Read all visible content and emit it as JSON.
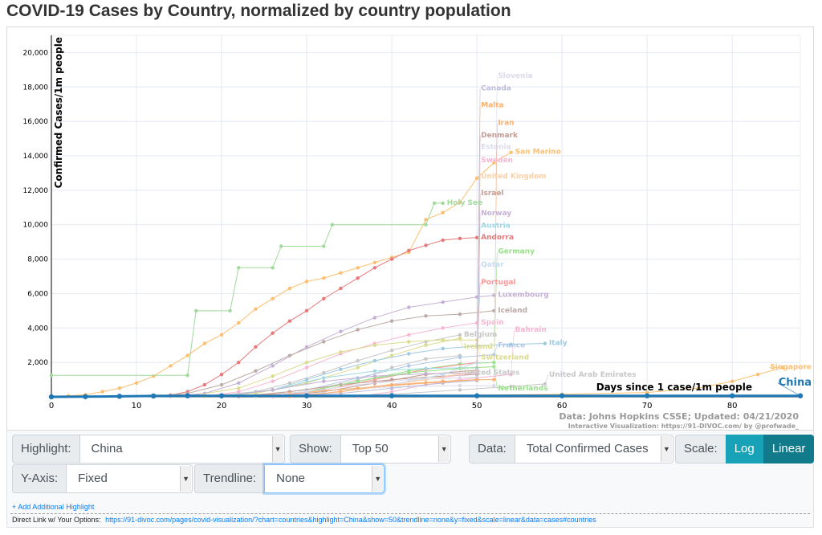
{
  "page": {
    "title": "COVID-19 Cases by Country, normalized by country population"
  },
  "controls": {
    "highlight": {
      "label": "Highlight:",
      "value": "China"
    },
    "show": {
      "label": "Show:",
      "value": "Top 50"
    },
    "data": {
      "label": "Data:",
      "value": "Total Confirmed Cases"
    },
    "scale": {
      "label": "Scale:",
      "options": [
        "Log",
        "Linear"
      ],
      "selected": "Linear"
    },
    "yaxis": {
      "label": "Y-Axis:",
      "value": "Fixed"
    },
    "trendline": {
      "label": "Trendline:",
      "value": "None"
    },
    "add_highlight": "+ Add Additional Highlight",
    "direct_link_label": "Direct Link w/ Your Options:",
    "direct_link_url": "https://91-divoc.com/pages/covid-visualization/?chart=countries&highlight=China&show=50&trendline=none&y=fixed&scale=linear&data=cases#countries"
  },
  "chart_data": {
    "type": "line",
    "title": "COVID-19 Cases by Country, normalized by country population",
    "xlabel": "Days since 1 case/1m people",
    "ylabel": "Confirmed Cases/1m people",
    "xlim": [
      0,
      88
    ],
    "ylim": [
      0,
      21000
    ],
    "x_ticks": [
      0,
      10,
      20,
      30,
      40,
      50,
      60,
      70,
      80
    ],
    "y_ticks": [
      2000,
      4000,
      6000,
      8000,
      10000,
      12000,
      14000,
      16000,
      18000,
      20000
    ],
    "y_tick_labels": [
      "2,000",
      "4,000",
      "6,000",
      "8,000",
      "10,000",
      "12,000",
      "14,000",
      "16,000",
      "18,000",
      "20,000"
    ],
    "grid": true,
    "source_note": "Data: Johns Hopkins CSSE; Updated: 04/21/2020",
    "credit_note": "Interactive Visualization: https://91-DIVOC.com/ by @profwade_",
    "highlighted": "China",
    "series": [
      {
        "name": "San Marino",
        "color": "#fdbf6f",
        "points": [
          [
            0,
            30
          ],
          [
            2,
            60
          ],
          [
            4,
            120
          ],
          [
            6,
            300
          ],
          [
            8,
            500
          ],
          [
            10,
            800
          ],
          [
            12,
            1200
          ],
          [
            14,
            1800
          ],
          [
            16,
            2400
          ],
          [
            18,
            3100
          ],
          [
            20,
            3600
          ],
          [
            22,
            4300
          ],
          [
            24,
            5100
          ],
          [
            26,
            5700
          ],
          [
            28,
            6300
          ],
          [
            30,
            6700
          ],
          [
            32,
            6900
          ],
          [
            34,
            7200
          ],
          [
            36,
            7500
          ],
          [
            38,
            7800
          ],
          [
            40,
            8100
          ],
          [
            42,
            8400
          ],
          [
            44,
            10300
          ],
          [
            46,
            10700
          ],
          [
            48,
            11300
          ],
          [
            50,
            12700
          ],
          [
            52,
            13600
          ],
          [
            54,
            14200
          ]
        ]
      },
      {
        "name": "Holy See",
        "color": "#a1d99b",
        "points": [
          [
            0,
            1250
          ],
          [
            16,
            1250
          ],
          [
            17,
            5000
          ],
          [
            21,
            5000
          ],
          [
            22,
            7500
          ],
          [
            26,
            7500
          ],
          [
            27,
            8750
          ],
          [
            32,
            8750
          ],
          [
            33,
            10000
          ],
          [
            44,
            10000
          ],
          [
            45,
            11250
          ],
          [
            46,
            11250
          ]
        ]
      },
      {
        "name": "Andorra",
        "color": "#e6787a",
        "points": [
          [
            12,
            30
          ],
          [
            14,
            100
          ],
          [
            16,
            300
          ],
          [
            18,
            700
          ],
          [
            20,
            1300
          ],
          [
            22,
            2000
          ],
          [
            24,
            2900
          ],
          [
            26,
            3700
          ],
          [
            28,
            4400
          ],
          [
            30,
            5000
          ],
          [
            32,
            5700
          ],
          [
            34,
            6300
          ],
          [
            36,
            6900
          ],
          [
            38,
            7500
          ],
          [
            40,
            8000
          ],
          [
            42,
            8500
          ],
          [
            44,
            8800
          ],
          [
            46,
            9100
          ],
          [
            48,
            9200
          ],
          [
            50,
            9250
          ]
        ]
      },
      {
        "name": "Luxembourg",
        "color": "#c5b0d5",
        "points": [
          [
            14,
            30
          ],
          [
            18,
            200
          ],
          [
            22,
            800
          ],
          [
            26,
            1800
          ],
          [
            30,
            2900
          ],
          [
            34,
            3800
          ],
          [
            38,
            4600
          ],
          [
            42,
            5200
          ],
          [
            46,
            5500
          ],
          [
            50,
            5800
          ],
          [
            52,
            5900
          ]
        ]
      },
      {
        "name": "Iceland",
        "color": "#bcaaa4",
        "points": [
          [
            12,
            30
          ],
          [
            16,
            200
          ],
          [
            20,
            700
          ],
          [
            24,
            1500
          ],
          [
            28,
            2400
          ],
          [
            32,
            3200
          ],
          [
            36,
            3900
          ],
          [
            40,
            4400
          ],
          [
            44,
            4700
          ],
          [
            48,
            4800
          ],
          [
            52,
            5000
          ]
        ]
      },
      {
        "name": "Spain",
        "color": "#f7b6d2",
        "points": [
          [
            18,
            30
          ],
          [
            22,
            300
          ],
          [
            26,
            900
          ],
          [
            30,
            1700
          ],
          [
            34,
            2500
          ],
          [
            38,
            3100
          ],
          [
            42,
            3600
          ],
          [
            46,
            4000
          ],
          [
            50,
            4300
          ]
        ]
      },
      {
        "name": "Belgium",
        "color": "#c7c7c7",
        "points": [
          [
            18,
            30
          ],
          [
            24,
            300
          ],
          [
            28,
            800
          ],
          [
            32,
            1400
          ],
          [
            36,
            2100
          ],
          [
            40,
            2700
          ],
          [
            44,
            3200
          ],
          [
            48,
            3600
          ]
        ]
      },
      {
        "name": "Ireland",
        "color": "#dbdb8d",
        "points": [
          [
            18,
            20
          ],
          [
            24,
            200
          ],
          [
            30,
            800
          ],
          [
            36,
            1700
          ],
          [
            40,
            2400
          ],
          [
            44,
            3000
          ],
          [
            48,
            3400
          ]
        ]
      },
      {
        "name": "Switzerland",
        "color": "#dbdb8d",
        "points": [
          [
            16,
            30
          ],
          [
            22,
            500
          ],
          [
            26,
            1200
          ],
          [
            30,
            2000
          ],
          [
            34,
            2600
          ],
          [
            38,
            3000
          ],
          [
            42,
            3200
          ],
          [
            46,
            3300
          ],
          [
            50,
            3300
          ]
        ]
      },
      {
        "name": "Italy",
        "color": "#9ecae1",
        "points": [
          [
            20,
            30
          ],
          [
            26,
            400
          ],
          [
            30,
            1000
          ],
          [
            34,
            1600
          ],
          [
            38,
            2100
          ],
          [
            42,
            2500
          ],
          [
            46,
            2800
          ],
          [
            50,
            2950
          ],
          [
            54,
            3050
          ],
          [
            58,
            3100
          ]
        ]
      },
      {
        "name": "United States",
        "color": "#c7c7c7",
        "points": [
          [
            22,
            20
          ],
          [
            30,
            300
          ],
          [
            36,
            1000
          ],
          [
            40,
            1700
          ],
          [
            44,
            2200
          ],
          [
            48,
            2400
          ]
        ]
      },
      {
        "name": "France",
        "color": "#aec7e8",
        "points": [
          [
            22,
            20
          ],
          [
            30,
            400
          ],
          [
            36,
            1100
          ],
          [
            42,
            1800
          ],
          [
            48,
            2300
          ],
          [
            52,
            2450
          ]
        ]
      },
      {
        "name": "Netherlands",
        "color": "#98df8a",
        "points": [
          [
            24,
            20
          ],
          [
            30,
            300
          ],
          [
            36,
            900
          ],
          [
            42,
            1500
          ],
          [
            48,
            1900
          ],
          [
            52,
            2000
          ]
        ]
      },
      {
        "name": "Portugal",
        "color": "#ff9896",
        "points": [
          [
            26,
            20
          ],
          [
            32,
            400
          ],
          [
            38,
            1000
          ],
          [
            44,
            1600
          ],
          [
            50,
            2000
          ]
        ]
      },
      {
        "name": "Israel",
        "color": "#c49c94",
        "points": [
          [
            26,
            20
          ],
          [
            32,
            300
          ],
          [
            38,
            800
          ],
          [
            44,
            1300
          ],
          [
            50,
            1550
          ]
        ]
      },
      {
        "name": "Austria",
        "color": "#9edae5",
        "points": [
          [
            20,
            20
          ],
          [
            26,
            400
          ],
          [
            32,
            1100
          ],
          [
            38,
            1500
          ],
          [
            44,
            1650
          ],
          [
            50,
            1700
          ]
        ]
      },
      {
        "name": "Norway",
        "color": "#c5b0d5",
        "points": [
          [
            20,
            20
          ],
          [
            26,
            400
          ],
          [
            32,
            900
          ],
          [
            38,
            1200
          ],
          [
            44,
            1350
          ],
          [
            50,
            1400
          ]
        ]
      },
      {
        "name": "Denmark",
        "color": "#c49c94",
        "points": [
          [
            22,
            20
          ],
          [
            28,
            300
          ],
          [
            34,
            700
          ],
          [
            40,
            1000
          ],
          [
            46,
            1200
          ],
          [
            50,
            1300
          ]
        ]
      },
      {
        "name": "Germany",
        "color": "#98df8a",
        "points": [
          [
            24,
            20
          ],
          [
            30,
            300
          ],
          [
            36,
            900
          ],
          [
            42,
            1400
          ],
          [
            48,
            1650
          ],
          [
            52,
            1750
          ]
        ]
      },
      {
        "name": "Sweden",
        "color": "#f7b6d2",
        "points": [
          [
            26,
            20
          ],
          [
            32,
            200
          ],
          [
            38,
            600
          ],
          [
            44,
            1000
          ],
          [
            50,
            1400
          ]
        ]
      },
      {
        "name": "Bahrain",
        "color": "#f7b6d2",
        "points": [
          [
            36,
            20
          ],
          [
            40,
            300
          ],
          [
            44,
            700
          ],
          [
            48,
            1000
          ],
          [
            50,
            1100
          ],
          [
            54,
            1300
          ]
        ]
      },
      {
        "name": "United Kingdom",
        "color": "#fdd0a2",
        "points": [
          [
            26,
            20
          ],
          [
            32,
            200
          ],
          [
            38,
            600
          ],
          [
            44,
            1000
          ],
          [
            50,
            1500
          ]
        ]
      },
      {
        "name": "Slovenia",
        "color": "#dadaeb",
        "points": [
          [
            24,
            20
          ],
          [
            30,
            300
          ],
          [
            36,
            500
          ],
          [
            42,
            600
          ],
          [
            48,
            650
          ],
          [
            52,
            650
          ]
        ]
      },
      {
        "name": "Iran",
        "color": "#fdae6b",
        "points": [
          [
            20,
            20
          ],
          [
            28,
            200
          ],
          [
            36,
            500
          ],
          [
            44,
            800
          ],
          [
            50,
            1000
          ],
          [
            52,
            1000
          ]
        ]
      },
      {
        "name": "Estonia",
        "color": "#dadaeb",
        "points": [
          [
            24,
            20
          ],
          [
            30,
            300
          ],
          [
            36,
            700
          ],
          [
            42,
            1000
          ],
          [
            48,
            1100
          ],
          [
            50,
            1150
          ]
        ]
      },
      {
        "name": "Qatar",
        "color": "#c6dbef",
        "points": [
          [
            24,
            20
          ],
          [
            32,
            200
          ],
          [
            40,
            700
          ],
          [
            46,
            1300
          ],
          [
            50,
            2000
          ]
        ]
      },
      {
        "name": "Singapore",
        "color": "#fdbf6f",
        "points": [
          [
            0,
            5
          ],
          [
            20,
            20
          ],
          [
            40,
            60
          ],
          [
            60,
            150
          ],
          [
            70,
            250
          ],
          [
            76,
            500
          ],
          [
            80,
            900
          ],
          [
            83,
            1300
          ],
          [
            86,
            1700
          ]
        ]
      },
      {
        "name": "United Arab Emirates",
        "color": "#c7c7c7",
        "points": [
          [
            30,
            20
          ],
          [
            40,
            150
          ],
          [
            48,
            400
          ],
          [
            54,
            600
          ],
          [
            58,
            750
          ]
        ]
      },
      {
        "name": "Canada",
        "color": "#bcbddc",
        "points": [
          [
            26,
            20
          ],
          [
            34,
            200
          ],
          [
            40,
            500
          ],
          [
            46,
            800
          ],
          [
            50,
            950
          ]
        ]
      },
      {
        "name": "Malta",
        "color": "#fdae6b",
        "points": [
          [
            28,
            20
          ],
          [
            34,
            300
          ],
          [
            40,
            700
          ],
          [
            46,
            900
          ],
          [
            50,
            1000
          ]
        ]
      },
      {
        "name": "China",
        "color": "#1f77b4",
        "points": [
          [
            0,
            1
          ],
          [
            4,
            10
          ],
          [
            8,
            30
          ],
          [
            12,
            50
          ],
          [
            16,
            60
          ],
          [
            20,
            60
          ],
          [
            30,
            60
          ],
          [
            40,
            60
          ],
          [
            50,
            60
          ],
          [
            60,
            60
          ],
          [
            70,
            60
          ],
          [
            80,
            60
          ],
          [
            88,
            60
          ]
        ]
      }
    ]
  }
}
